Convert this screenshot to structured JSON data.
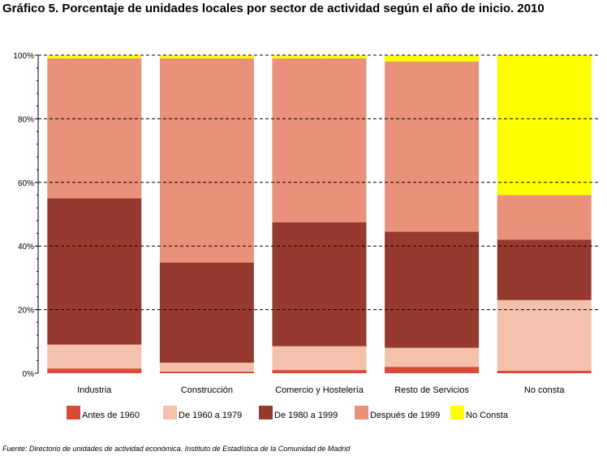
{
  "chart_data": {
    "type": "bar",
    "stacked": true,
    "title": "Gráfico 5. Porcentaje de unidades locales por sector de actividad según el año de inicio. 2010",
    "categories": [
      "Industria",
      "Construcción",
      "Comercio y Hostelería",
      "Resto de Servicios",
      "No consta"
    ],
    "series": [
      {
        "name": "Antes de 1960",
        "color": "#d94a38",
        "values": [
          1.5,
          0.5,
          1.0,
          2.0,
          0.8
        ]
      },
      {
        "name": "De 1960 a 1979",
        "color": "#f4c2ac",
        "values": [
          7.5,
          2.8,
          7.5,
          6.0,
          22.2
        ]
      },
      {
        "name": "De 1980 a 1999",
        "color": "#963a30",
        "values": [
          46.0,
          31.5,
          39.0,
          36.5,
          19.0
        ]
      },
      {
        "name": "Después de 1999",
        "color": "#e9917b",
        "values": [
          44.0,
          64.2,
          51.5,
          53.5,
          14.0
        ]
      },
      {
        "name": "No Consta",
        "color": "#ffff00",
        "values": [
          1.0,
          1.0,
          1.0,
          2.0,
          44.0
        ]
      }
    ],
    "ylim": [
      0,
      100
    ],
    "yticks": [
      "0%",
      "20%",
      "40%",
      "60%",
      "80%",
      "100%"
    ],
    "grid": true,
    "legend_position": "bottom",
    "source": "Fuente: Directorio de unidades de actividad económica. Instituto de Estadística de la Comunidad de Madrid"
  }
}
